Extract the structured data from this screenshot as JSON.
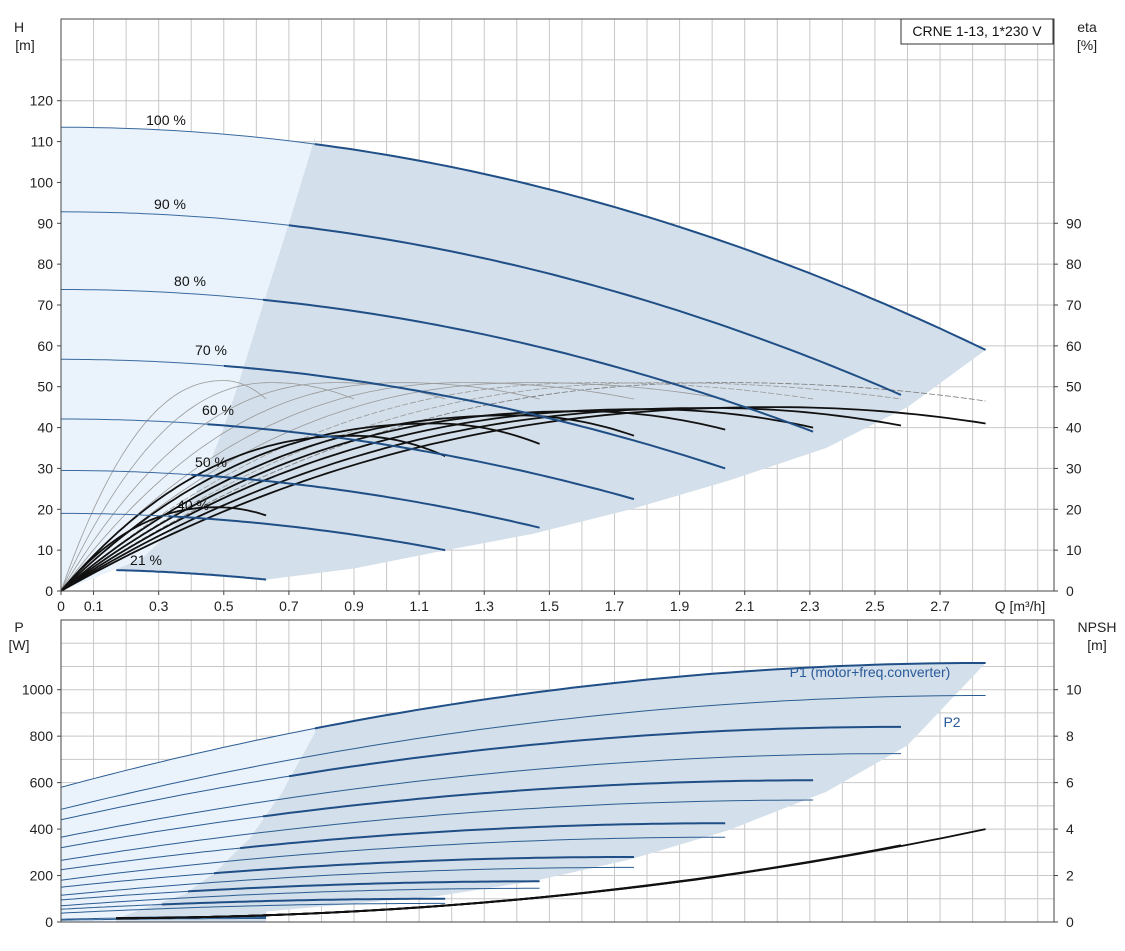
{
  "chart_data": [
    {
      "type": "line",
      "title": "CRNE 1-13, 1*230 V",
      "xlabel": "Q [m³/h]",
      "ylabel": "H [m]",
      "y2label": "eta [%]",
      "xlim": [
        0,
        3.05
      ],
      "ylim": [
        0,
        140
      ],
      "y2lim": [
        0,
        140
      ],
      "x_ticks": [
        "0",
        "0.1",
        "0.3",
        "0.5",
        "0.7",
        "0.9",
        "1.1",
        "1.3",
        "1.5",
        "1.7",
        "1.9",
        "2.1",
        "2.3",
        "2.5",
        "2.7"
      ],
      "y_ticks": [
        0,
        10,
        20,
        30,
        40,
        50,
        60,
        70,
        80,
        90,
        100,
        110,
        120
      ],
      "y2_ticks": [
        0,
        10,
        20,
        30,
        40,
        50,
        60,
        70,
        80,
        90
      ],
      "grid": true,
      "speed_labels": [
        "100 %",
        "90 %",
        "80 %",
        "70 %",
        "60 %",
        "50 %",
        "40 %",
        "21 %"
      ],
      "head_curves": [
        {
          "speed": 1.0,
          "h0": 113.5,
          "qmax": 2.84,
          "hend": 59
        },
        {
          "speed": 0.9,
          "h0": 92.8,
          "qmax": 2.58,
          "hend": 48
        },
        {
          "speed": 0.8,
          "h0": 73.8,
          "qmax": 2.31,
          "hend": 39
        },
        {
          "speed": 0.7,
          "h0": 56.7,
          "qmax": 2.04,
          "hend": 30
        },
        {
          "speed": 0.6,
          "h0": 42.1,
          "qmax": 1.76,
          "hend": 22.5
        },
        {
          "speed": 0.5,
          "h0": 29.5,
          "qmax": 1.47,
          "hend": 15.5
        },
        {
          "speed": 0.4,
          "h0": 19.0,
          "qmax": 1.18,
          "hend": 10
        },
        {
          "speed": 0.21,
          "h0": 5.3,
          "qmax": 0.63,
          "hend": 2.8
        }
      ],
      "eta_curves": [
        {
          "qmax": 2.84,
          "emax": 45,
          "qpeak": 2.2,
          "eend": 41
        },
        {
          "qmax": 2.58,
          "emax": 44.8,
          "qpeak": 2.0,
          "eend": 40.5
        },
        {
          "qmax": 2.31,
          "emax": 44.5,
          "qpeak": 1.8,
          "eend": 40
        },
        {
          "qmax": 2.04,
          "emax": 44,
          "qpeak": 1.6,
          "eend": 39.5
        },
        {
          "qmax": 1.76,
          "emax": 43,
          "qpeak": 1.4,
          "eend": 38
        },
        {
          "qmax": 1.47,
          "emax": 41,
          "qpeak": 1.15,
          "eend": 36
        },
        {
          "qmax": 1.18,
          "emax": 38,
          "qpeak": 0.9,
          "eend": 33
        },
        {
          "qmax": 0.63,
          "emax": 20.5,
          "qpeak": 0.48,
          "eend": 18.5
        }
      ]
    },
    {
      "type": "line",
      "xlabel": "Q [m³/h]",
      "ylabel": "P [W]",
      "y2label": "NPSH [m]",
      "xlim": [
        0,
        3.05
      ],
      "ylim": [
        0,
        1300
      ],
      "y2lim": [
        0,
        13
      ],
      "y_ticks": [
        0,
        200,
        400,
        600,
        800,
        1000
      ],
      "y2_ticks": [
        0,
        2,
        4,
        6,
        8,
        10
      ],
      "grid": true,
      "series_labels": [
        "P1 (motor+freq.converter)",
        "P2"
      ],
      "p1_curves": [
        {
          "qmax": 2.84,
          "p0": 580,
          "pend": 1115
        },
        {
          "qmax": 2.58,
          "p0": 440,
          "pend": 840
        },
        {
          "qmax": 2.31,
          "p0": 320,
          "pend": 610
        },
        {
          "qmax": 2.04,
          "p0": 225,
          "pend": 425
        },
        {
          "qmax": 1.76,
          "p0": 150,
          "pend": 280
        },
        {
          "qmax": 1.47,
          "p0": 95,
          "pend": 175
        },
        {
          "qmax": 1.18,
          "p0": 55,
          "pend": 100
        },
        {
          "qmax": 0.63,
          "p0": 12,
          "pend": 22
        }
      ],
      "p2_curves": [
        {
          "qmax": 2.84,
          "p0": 485,
          "pend": 975
        },
        {
          "qmax": 2.58,
          "p0": 365,
          "pend": 725
        },
        {
          "qmax": 2.31,
          "p0": 265,
          "pend": 525
        },
        {
          "qmax": 2.04,
          "p0": 180,
          "pend": 365
        },
        {
          "qmax": 1.76,
          "p0": 115,
          "pend": 235
        },
        {
          "qmax": 1.47,
          "p0": 70,
          "pend": 145
        },
        {
          "qmax": 1.18,
          "p0": 38,
          "pend": 80
        },
        {
          "qmax": 0.63,
          "p0": 8,
          "pend": 15
        }
      ],
      "npsh_curves": [
        {
          "qmax": 2.84,
          "nend": 4.0
        },
        {
          "qmax": 2.58,
          "nend": 3.3
        },
        {
          "qmax": 2.31,
          "nend": 2.6
        },
        {
          "qmax": 2.04,
          "nend": 2.0
        },
        {
          "qmax": 1.76,
          "nend": 1.5
        },
        {
          "qmax": 1.47,
          "nend": 1.05
        },
        {
          "qmax": 1.18,
          "nend": 0.7
        }
      ]
    }
  ]
}
